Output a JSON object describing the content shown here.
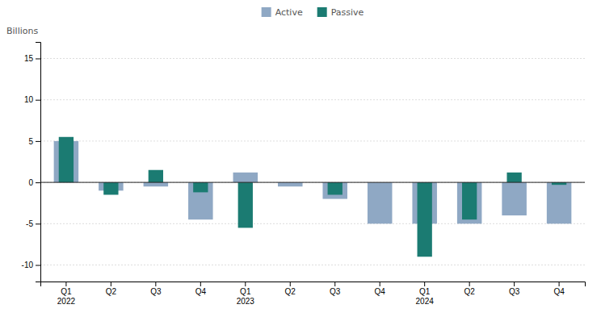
{
  "chart_data": {
    "type": "bar",
    "ylabel": "Billions",
    "categories": [
      "Q1\n2022",
      "Q2",
      "Q3",
      "Q4",
      "Q1\n2023",
      "Q2",
      "Q3",
      "Q4",
      "Q1\n2024",
      "Q2",
      "Q3",
      "Q4"
    ],
    "series": [
      {
        "name": "Active",
        "color": "#8fa8c4",
        "values": [
          5.0,
          -1.0,
          -0.5,
          -4.5,
          1.2,
          -0.5,
          -2.0,
          -5.0,
          -5.0,
          -5.0,
          -4.0,
          -5.0
        ]
      },
      {
        "name": "Passive",
        "color": "#1b7b72",
        "values": [
          5.5,
          -1.5,
          1.5,
          -1.2,
          -5.5,
          0.0,
          -1.5,
          0.0,
          -9.0,
          -4.5,
          1.2,
          -0.3
        ]
      }
    ],
    "ylim": [
      -12,
      17
    ],
    "yticks": [
      -10,
      -5,
      0,
      5,
      10,
      15
    ],
    "grid": true,
    "legend": "top"
  }
}
